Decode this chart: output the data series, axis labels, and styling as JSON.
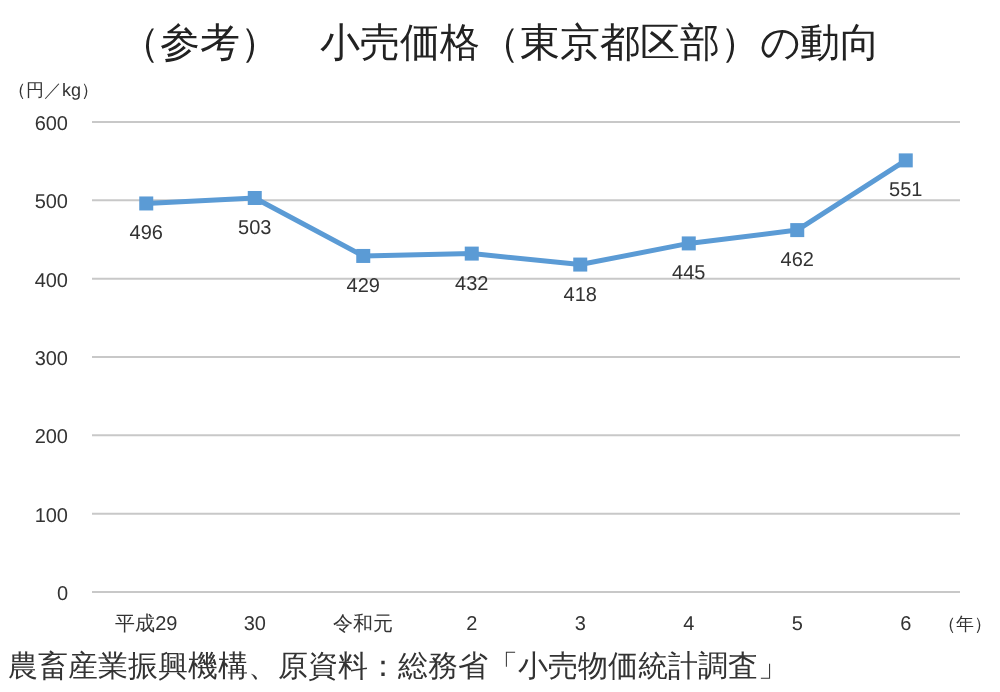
{
  "chart_data": {
    "type": "line",
    "title": "（参考）　小売価格（東京都区部）の動向",
    "ylabel": "（円／kg）",
    "xlabel": "（年）",
    "categories": [
      "平成29",
      "30",
      "令和元",
      "2",
      "3",
      "4",
      "5",
      "6"
    ],
    "series": [
      {
        "color": "#5b9bd5",
        "values": [
          496,
          503,
          429,
          432,
          418,
          445,
          462,
          551
        ]
      }
    ],
    "ylim": [
      0,
      600
    ],
    "yticks": [
      0,
      100,
      200,
      300,
      400,
      500,
      600
    ],
    "grid": "y",
    "marker": "square",
    "data_labels": true,
    "annotations": [
      "農畜産業振興機構、原資料：総務省「小売物価統計調査」"
    ]
  }
}
